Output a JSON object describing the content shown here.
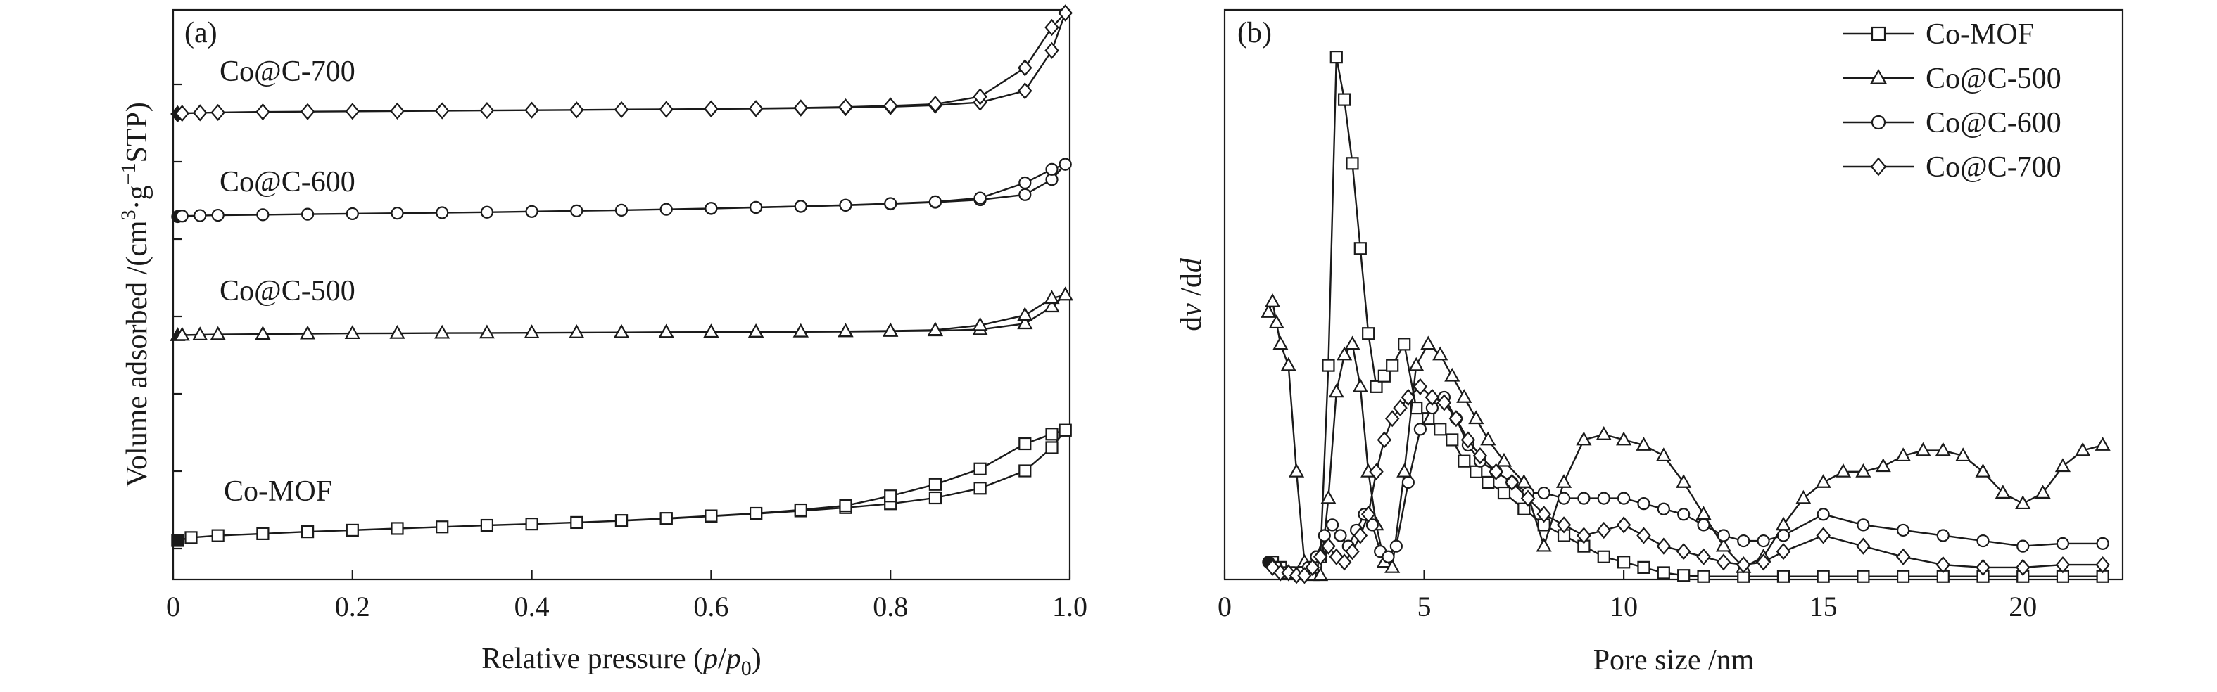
{
  "chart_data": [
    {
      "panel": "(a)",
      "type": "line",
      "xlabel": "Relative pressure (p/p0)",
      "ylabel": "Volume adsorbed /(cm3·g−1STP)",
      "xlim": [
        0,
        1.0
      ],
      "xticks": [
        "0",
        "0.2",
        "0.4",
        "0.6",
        "0.8",
        "1.0"
      ],
      "yticks_labeled": false,
      "legend": "none",
      "series": [
        {
          "name": "Co-MOF",
          "label_position": "above-curve-left",
          "adsorption": {
            "x": [
              0.005,
              0.02,
              0.05,
              0.1,
              0.15,
              0.2,
              0.25,
              0.3,
              0.35,
              0.4,
              0.45,
              0.5,
              0.55,
              0.6,
              0.65,
              0.7,
              0.75,
              0.8,
              0.85,
              0.9,
              0.95,
              0.98,
              0.995
            ],
            "y": [
              0.06,
              0.075,
              0.085,
              0.095,
              0.105,
              0.113,
              0.122,
              0.13,
              0.138,
              0.145,
              0.153,
              0.162,
              0.172,
              0.185,
              0.198,
              0.213,
              0.23,
              0.25,
              0.28,
              0.33,
              0.42,
              0.54,
              0.63
            ]
          },
          "desorption": {
            "x": [
              0.995,
              0.98,
              0.95,
              0.9,
              0.85,
              0.8,
              0.75,
              0.7,
              0.65,
              0.6,
              0.55,
              0.5
            ],
            "y": [
              0.63,
              0.61,
              0.56,
              0.43,
              0.35,
              0.29,
              0.24,
              0.218,
              0.2,
              0.187,
              0.174,
              0.163
            ]
          }
        },
        {
          "name": "Co@C-500",
          "label_position": "above-curve-left",
          "adsorption": {
            "x": [
              0.005,
              0.01,
              0.03,
              0.05,
              0.1,
              0.15,
              0.2,
              0.25,
              0.3,
              0.35,
              0.4,
              0.45,
              0.5,
              0.55,
              0.6,
              0.65,
              0.7,
              0.75,
              0.8,
              0.85,
              0.9,
              0.95,
              0.98,
              0.995
            ],
            "y": [
              0.0,
              0.002,
              0.004,
              0.006,
              0.008,
              0.01,
              0.012,
              0.013,
              0.014,
              0.015,
              0.016,
              0.017,
              0.018,
              0.019,
              0.02,
              0.021,
              0.022,
              0.023,
              0.025,
              0.028,
              0.035,
              0.07,
              0.17,
              0.24
            ]
          },
          "desorption": {
            "x": [
              0.995,
              0.98,
              0.95,
              0.9,
              0.85,
              0.8,
              0.75,
              0.7,
              0.65,
              0.6,
              0.55,
              0.5
            ],
            "y": [
              0.24,
              0.22,
              0.12,
              0.06,
              0.032,
              0.027,
              0.024,
              0.022,
              0.021,
              0.02,
              0.019,
              0.018
            ]
          }
        },
        {
          "name": "Co@C-600",
          "label_position": "above-curve-left",
          "adsorption": {
            "x": [
              0.005,
              0.01,
              0.03,
              0.05,
              0.1,
              0.15,
              0.2,
              0.25,
              0.3,
              0.35,
              0.4,
              0.45,
              0.5,
              0.55,
              0.6,
              0.65,
              0.7,
              0.75,
              0.8,
              0.85,
              0.9,
              0.95,
              0.98,
              0.995
            ],
            "y": [
              0.0,
              0.003,
              0.006,
              0.008,
              0.011,
              0.014,
              0.017,
              0.02,
              0.023,
              0.026,
              0.03,
              0.034,
              0.038,
              0.043,
              0.048,
              0.054,
              0.06,
              0.067,
              0.075,
              0.085,
              0.1,
              0.13,
              0.22,
              0.31
            ]
          },
          "desorption": {
            "x": [
              0.995,
              0.98,
              0.95,
              0.9,
              0.85,
              0.8,
              0.75,
              0.7,
              0.65,
              0.6
            ],
            "y": [
              0.31,
              0.28,
              0.2,
              0.11,
              0.088,
              0.077,
              0.068,
              0.061,
              0.055,
              0.049
            ]
          }
        },
        {
          "name": "Co@C-700",
          "label_position": "above-curve-left",
          "adsorption": {
            "x": [
              0.005,
              0.01,
              0.03,
              0.05,
              0.1,
              0.15,
              0.2,
              0.25,
              0.3,
              0.35,
              0.4,
              0.45,
              0.5,
              0.55,
              0.6,
              0.65,
              0.7,
              0.75,
              0.8,
              0.85,
              0.9,
              0.95,
              0.98,
              0.995
            ],
            "y": [
              0.0,
              0.002,
              0.004,
              0.005,
              0.007,
              0.008,
              0.009,
              0.01,
              0.011,
              0.012,
              0.013,
              0.014,
              0.015,
              0.016,
              0.017,
              0.018,
              0.02,
              0.022,
              0.025,
              0.03,
              0.04,
              0.08,
              0.22,
              0.35
            ]
          },
          "desorption": {
            "x": [
              0.995,
              0.98,
              0.95,
              0.9,
              0.85,
              0.8,
              0.75,
              0.7,
              0.65,
              0.6
            ],
            "y": [
              0.35,
              0.3,
              0.16,
              0.06,
              0.034,
              0.028,
              0.024,
              0.021,
              0.019,
              0.018
            ]
          }
        }
      ]
    },
    {
      "panel": "(b)",
      "type": "line",
      "xlabel": "Pore size /nm",
      "ylabel": "dv /dd",
      "xlim": [
        0,
        22.5
      ],
      "ylim": [
        0,
        1.0
      ],
      "xticks": [
        "0",
        "5",
        "10",
        "15",
        "20"
      ],
      "yticks_labeled": false,
      "legend": "top-right",
      "series": [
        {
          "name": "Co-MOF",
          "marker": "square",
          "x": [
            1.2,
            1.4,
            1.6,
            1.8,
            2.0,
            2.2,
            2.4,
            2.6,
            2.8,
            3.0,
            3.2,
            3.4,
            3.6,
            3.8,
            4.0,
            4.2,
            4.5,
            4.8,
            5.1,
            5.4,
            5.7,
            6.0,
            6.3,
            6.6,
            7.0,
            7.5,
            8.0,
            8.5,
            9.0,
            9.5,
            10.0,
            10.5,
            11.0,
            11.5,
            12.0,
            13.0,
            14.0,
            15.0,
            16.0,
            17.0,
            18.0,
            19.0,
            20.0,
            21.0,
            22.0
          ],
          "y": [
            0.03,
            0.02,
            0.01,
            0.01,
            0.01,
            0.02,
            0.04,
            0.4,
            0.98,
            0.9,
            0.78,
            0.62,
            0.46,
            0.36,
            0.38,
            0.4,
            0.44,
            0.32,
            0.3,
            0.28,
            0.26,
            0.22,
            0.2,
            0.18,
            0.16,
            0.13,
            0.1,
            0.08,
            0.06,
            0.04,
            0.03,
            0.02,
            0.01,
            0.005,
            0.003,
            0.003,
            0.003,
            0.003,
            0.003,
            0.003,
            0.003,
            0.003,
            0.003,
            0.003,
            0.003
          ]
        },
        {
          "name": "Co@C-500",
          "marker": "triangle",
          "x": [
            1.1,
            1.2,
            1.3,
            1.4,
            1.6,
            1.8,
            2.0,
            2.2,
            2.4,
            2.6,
            2.8,
            3.0,
            3.2,
            3.4,
            3.6,
            3.8,
            4.0,
            4.2,
            4.5,
            4.8,
            5.1,
            5.4,
            5.7,
            6.0,
            6.3,
            6.6,
            7.0,
            7.5,
            8.0,
            8.5,
            9.0,
            9.5,
            10.0,
            10.5,
            11.0,
            11.5,
            12.0,
            12.5,
            13.0,
            13.5,
            14.0,
            14.5,
            15.0,
            15.5,
            16.0,
            16.5,
            17.0,
            17.5,
            18.0,
            18.5,
            19.0,
            19.5,
            20.0,
            20.5,
            21.0,
            21.5,
            22.0
          ],
          "y": [
            0.5,
            0.52,
            0.48,
            0.44,
            0.4,
            0.2,
            0.03,
            0.005,
            0.005,
            0.15,
            0.35,
            0.42,
            0.44,
            0.36,
            0.2,
            0.1,
            0.03,
            0.02,
            0.2,
            0.4,
            0.44,
            0.42,
            0.38,
            0.34,
            0.3,
            0.26,
            0.22,
            0.18,
            0.06,
            0.18,
            0.26,
            0.27,
            0.26,
            0.25,
            0.23,
            0.18,
            0.12,
            0.06,
            0.02,
            0.04,
            0.1,
            0.15,
            0.18,
            0.2,
            0.2,
            0.21,
            0.23,
            0.24,
            0.24,
            0.23,
            0.2,
            0.16,
            0.14,
            0.16,
            0.21,
            0.24,
            0.25
          ]
        },
        {
          "name": "Co@C-600",
          "marker": "circle",
          "x": [
            1.1,
            1.3,
            1.5,
            1.7,
            1.9,
            2.1,
            2.3,
            2.5,
            2.7,
            2.9,
            3.1,
            3.3,
            3.5,
            3.7,
            3.9,
            4.1,
            4.3,
            4.6,
            4.9,
            5.2,
            5.5,
            5.8,
            6.1,
            6.4,
            6.8,
            7.2,
            7.6,
            8.0,
            8.5,
            9.0,
            9.5,
            10.0,
            10.5,
            11.0,
            11.5,
            12.0,
            12.5,
            13.0,
            13.5,
            14.0,
            15.0,
            16.0,
            17.0,
            18.0,
            19.0,
            20.0,
            21.0,
            22.0
          ],
          "y": [
            0.03,
            0.02,
            0.01,
            0.01,
            0.01,
            0.02,
            0.04,
            0.08,
            0.1,
            0.08,
            0.06,
            0.09,
            0.12,
            0.1,
            0.05,
            0.04,
            0.06,
            0.18,
            0.28,
            0.32,
            0.34,
            0.3,
            0.25,
            0.22,
            0.2,
            0.18,
            0.16,
            0.16,
            0.15,
            0.15,
            0.15,
            0.15,
            0.14,
            0.13,
            0.12,
            0.1,
            0.08,
            0.07,
            0.07,
            0.08,
            0.12,
            0.1,
            0.09,
            0.08,
            0.07,
            0.06,
            0.065,
            0.065
          ]
        },
        {
          "name": "Co@C-700",
          "marker": "diamond",
          "x": [
            1.2,
            1.4,
            1.6,
            1.8,
            2.0,
            2.2,
            2.4,
            2.6,
            2.8,
            3.0,
            3.2,
            3.4,
            3.6,
            3.8,
            4.0,
            4.2,
            4.4,
            4.6,
            4.9,
            5.2,
            5.5,
            5.8,
            6.1,
            6.4,
            6.8,
            7.2,
            7.6,
            8.0,
            8.5,
            9.0,
            9.5,
            10.0,
            10.5,
            11.0,
            11.5,
            12.0,
            12.5,
            13.0,
            13.5,
            14.0,
            15.0,
            16.0,
            17.0,
            18.0,
            19.0,
            20.0,
            21.0,
            22.0
          ],
          "y": [
            0.02,
            0.01,
            0.01,
            0.005,
            0.005,
            0.02,
            0.04,
            0.06,
            0.04,
            0.03,
            0.05,
            0.08,
            0.12,
            0.2,
            0.26,
            0.3,
            0.32,
            0.34,
            0.36,
            0.34,
            0.33,
            0.3,
            0.26,
            0.23,
            0.2,
            0.18,
            0.15,
            0.12,
            0.1,
            0.08,
            0.09,
            0.1,
            0.08,
            0.06,
            0.05,
            0.04,
            0.03,
            0.025,
            0.03,
            0.05,
            0.08,
            0.06,
            0.04,
            0.025,
            0.02,
            0.02,
            0.025,
            0.025
          ]
        }
      ]
    }
  ]
}
